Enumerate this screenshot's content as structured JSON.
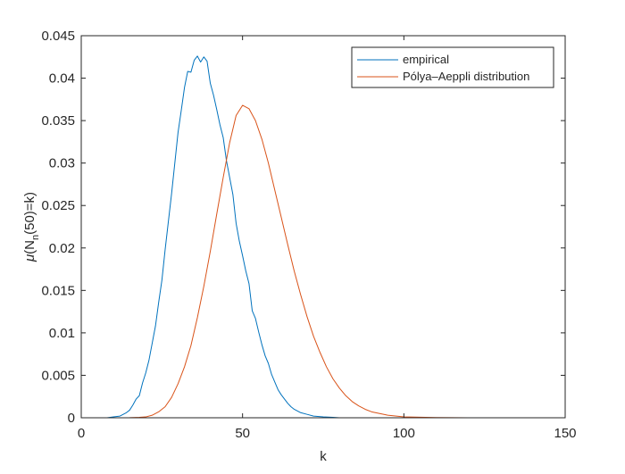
{
  "chart_data": {
    "type": "line",
    "xlabel": "k",
    "ylabel": {
      "prefix": "μ",
      "main": "(N",
      "subscript": "n",
      "suffix": "(50)=k)"
    },
    "xlim": [
      0,
      150
    ],
    "ylim": [
      0,
      0.045
    ],
    "x_ticks": [
      0,
      50,
      100,
      150
    ],
    "x_tick_labels": [
      "0",
      "50",
      "100",
      "150"
    ],
    "y_ticks": [
      0,
      0.005,
      0.01,
      0.015,
      0.02,
      0.025,
      0.03,
      0.035,
      0.04,
      0.045
    ],
    "y_tick_labels": [
      "0",
      "0.005",
      "0.01",
      "0.015",
      "0.02",
      "0.025",
      "0.03",
      "0.035",
      "0.04",
      "0.045"
    ],
    "grid": false,
    "legend_position": "top-right",
    "series": [
      {
        "name": "empirical",
        "color": "#0072BD",
        "x": [
          0,
          8,
          10,
          12,
          13,
          14,
          15,
          16,
          17,
          18,
          19,
          20,
          21,
          22,
          23,
          24,
          25,
          26,
          27,
          28,
          29,
          30,
          31,
          32,
          33,
          34,
          35,
          36,
          37,
          38,
          39,
          40,
          41,
          42,
          43,
          44,
          45,
          46,
          47,
          48,
          49,
          50,
          51,
          52,
          53,
          54,
          55,
          56,
          57,
          58,
          59,
          60,
          61,
          62,
          63,
          64,
          65,
          66,
          68,
          70,
          72,
          75,
          78,
          80,
          85,
          150
        ],
        "y": [
          0,
          0,
          0.0001,
          0.0002,
          0.0004,
          0.0006,
          0.0009,
          0.0015,
          0.0022,
          0.0026,
          0.0041,
          0.0053,
          0.0068,
          0.0088,
          0.0108,
          0.0136,
          0.0162,
          0.0198,
          0.0231,
          0.0264,
          0.03,
          0.0336,
          0.0362,
          0.0389,
          0.0408,
          0.0407,
          0.0421,
          0.0426,
          0.0419,
          0.0425,
          0.042,
          0.0394,
          0.038,
          0.0363,
          0.0345,
          0.033,
          0.0303,
          0.0283,
          0.0263,
          0.0229,
          0.0208,
          0.0191,
          0.0173,
          0.0158,
          0.0126,
          0.0117,
          0.0101,
          0.0086,
          0.0073,
          0.0064,
          0.0051,
          0.0042,
          0.0033,
          0.0027,
          0.0022,
          0.0017,
          0.0013,
          0.001,
          0.0006,
          0.0004,
          0.0002,
          0.0001,
          5e-05,
          0,
          0,
          0
        ]
      },
      {
        "name": "Pólya–Aeppli distribution",
        "color": "#D95319",
        "x": [
          0,
          10,
          15,
          18,
          20,
          22,
          24,
          26,
          28,
          30,
          32,
          34,
          36,
          38,
          40,
          42,
          44,
          46,
          48,
          50,
          52,
          54,
          56,
          58,
          60,
          62,
          64,
          66,
          68,
          70,
          72,
          74,
          76,
          78,
          80,
          82,
          84,
          86,
          88,
          90,
          95,
          100,
          110,
          120,
          150
        ],
        "y": [
          0,
          0,
          1e-05,
          5e-05,
          0.0001,
          0.0003,
          0.0007,
          0.0013,
          0.0024,
          0.004,
          0.006,
          0.0085,
          0.0118,
          0.0155,
          0.0196,
          0.024,
          0.0283,
          0.0324,
          0.0356,
          0.0368,
          0.0364,
          0.035,
          0.0328,
          0.03,
          0.0268,
          0.0236,
          0.0204,
          0.0173,
          0.0145,
          0.0119,
          0.0096,
          0.0077,
          0.006,
          0.0046,
          0.0035,
          0.0026,
          0.0019,
          0.0014,
          0.001,
          0.0007,
          0.0003,
          0.0001,
          2e-05,
          0,
          0
        ]
      }
    ]
  }
}
